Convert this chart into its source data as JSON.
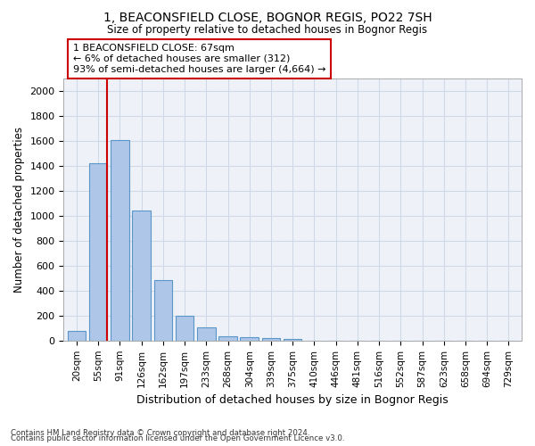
{
  "title": "1, BEACONSFIELD CLOSE, BOGNOR REGIS, PO22 7SH",
  "subtitle": "Size of property relative to detached houses in Bognor Regis",
  "xlabel": "Distribution of detached houses by size in Bognor Regis",
  "ylabel": "Number of detached properties",
  "bar_labels": [
    "20sqm",
    "55sqm",
    "91sqm",
    "126sqm",
    "162sqm",
    "197sqm",
    "233sqm",
    "268sqm",
    "304sqm",
    "339sqm",
    "375sqm",
    "410sqm",
    "446sqm",
    "481sqm",
    "516sqm",
    "552sqm",
    "587sqm",
    "623sqm",
    "658sqm",
    "694sqm",
    "729sqm"
  ],
  "bar_values": [
    80,
    1420,
    1610,
    1045,
    485,
    200,
    105,
    38,
    30,
    18,
    12,
    0,
    0,
    0,
    0,
    0,
    0,
    0,
    0,
    0,
    0
  ],
  "bar_color": "#aec6e8",
  "bar_edge_color": "#5a96c8",
  "vline_x": 1.42,
  "vline_color": "#cc0000",
  "annotation_text": "1 BEACONSFIELD CLOSE: 67sqm\n← 6% of detached houses are smaller (312)\n93% of semi-detached houses are larger (4,664) →",
  "annotation_box_color": "#ffffff",
  "annotation_box_edge_color": "#cc0000",
  "ylim": [
    0,
    2100
  ],
  "yticks": [
    0,
    200,
    400,
    600,
    800,
    1000,
    1200,
    1400,
    1600,
    1800,
    2000
  ],
  "grid_color": "#d0d8e8",
  "background_color": "#eef2f8",
  "footnote1": "Contains HM Land Registry data © Crown copyright and database right 2024.",
  "footnote2": "Contains public sector information licensed under the Open Government Licence v3.0."
}
